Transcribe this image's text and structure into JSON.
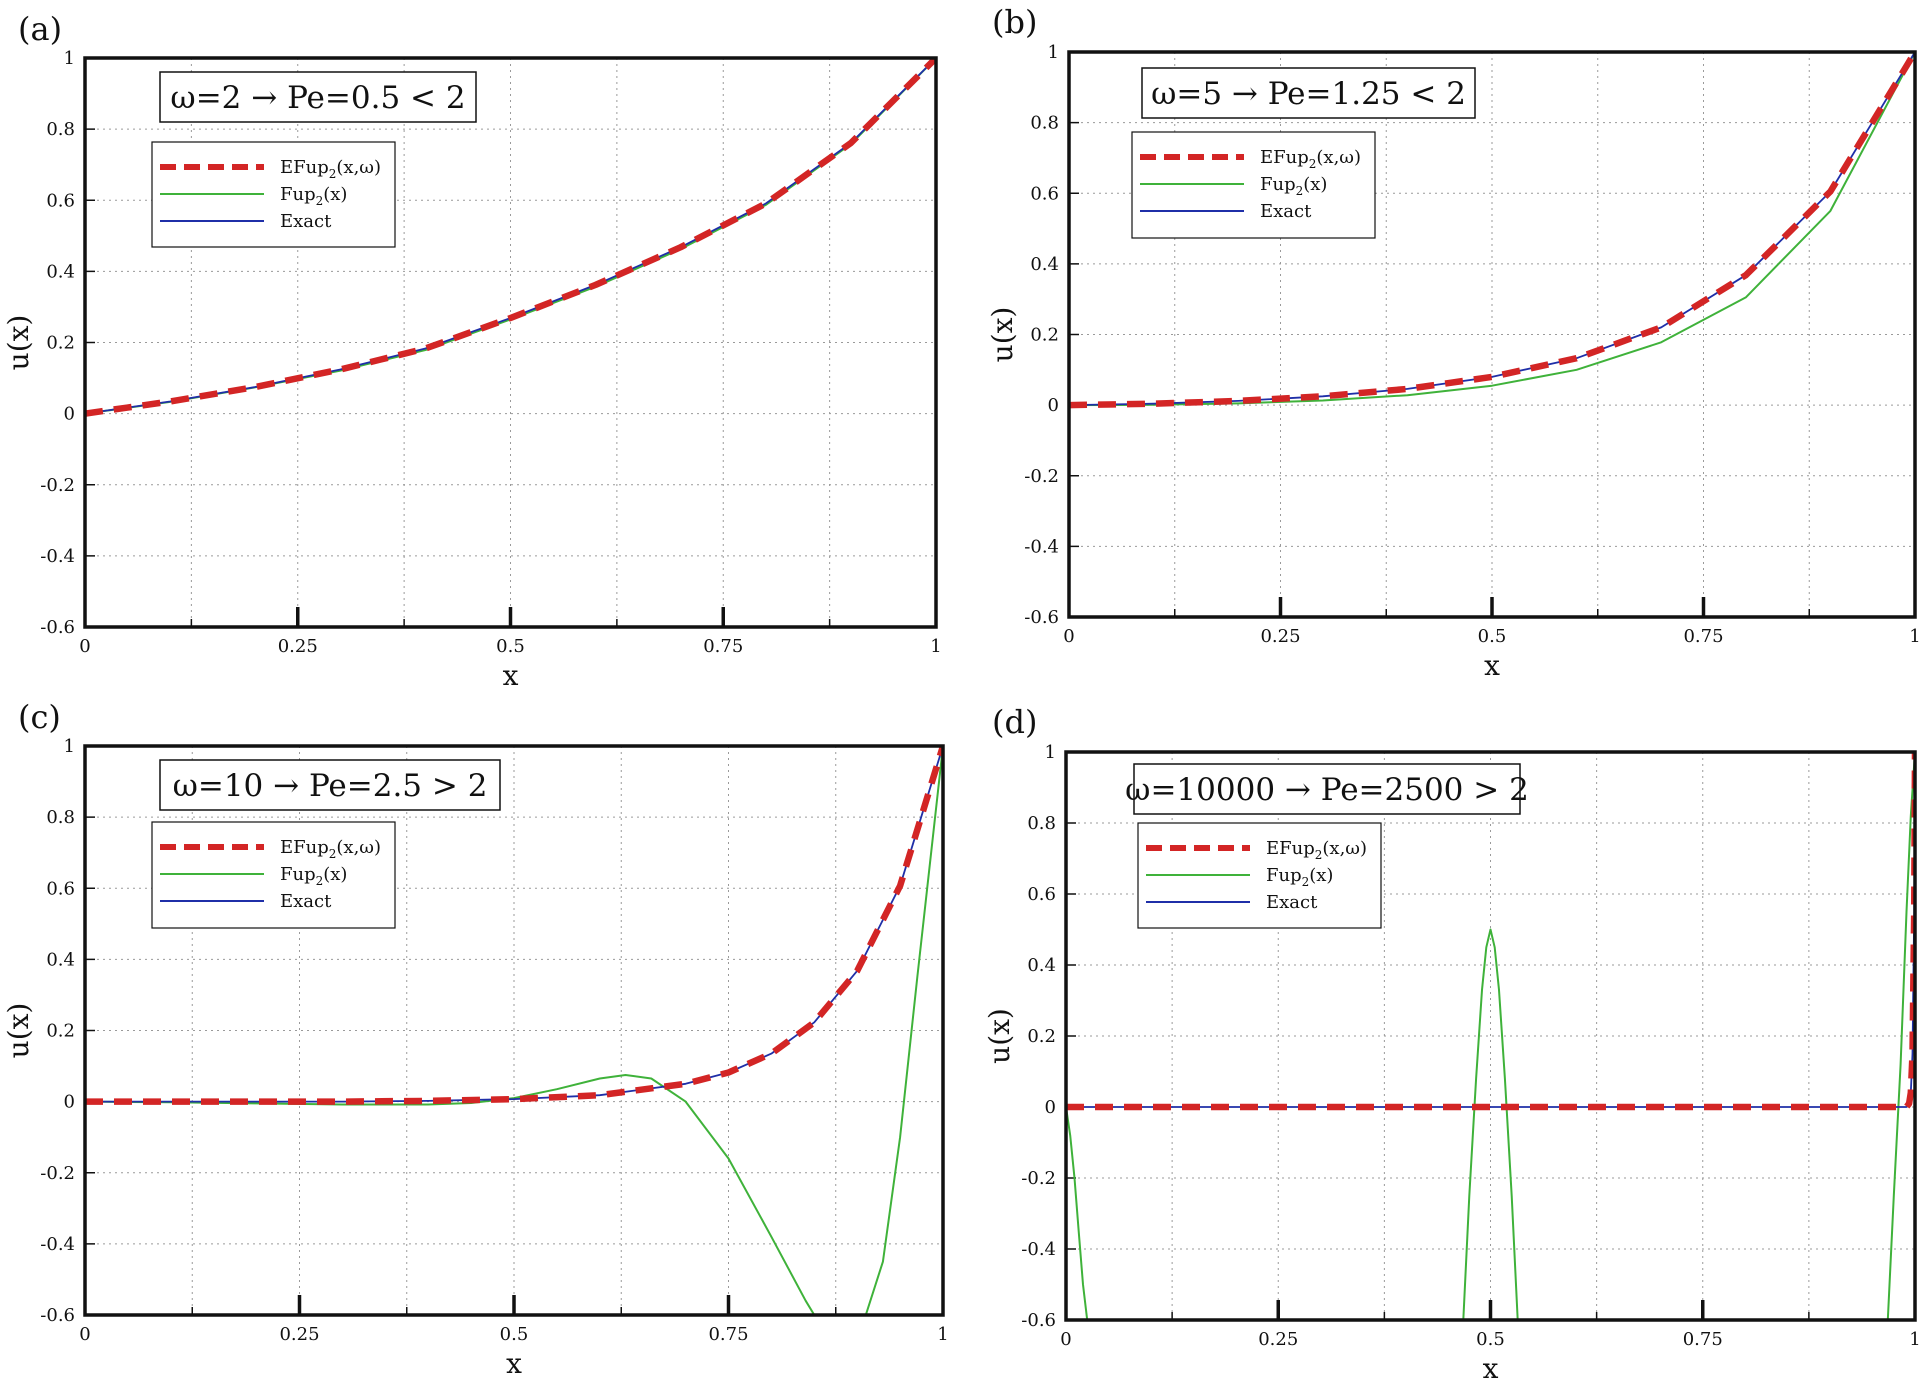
{
  "chart_data": [
    {
      "panel": "(a)",
      "type": "line",
      "omega": 2,
      "annotation": "ω=2 → Pe=0.5 < 2",
      "xlabel": "x",
      "ylabel": "u(x)",
      "xlim": [
        0,
        1
      ],
      "ylim": [
        -0.6,
        1
      ],
      "xticks": [
        "0",
        "0.25",
        "0.5",
        "0.75",
        "1"
      ],
      "yticks": [
        "1",
        "0.8",
        "0.6",
        "0.4",
        "0.2",
        "0",
        "-0.2",
        "-0.4",
        "-0.6"
      ],
      "grid": true,
      "legend": [
        {
          "base": "EFup",
          "sub": "2",
          "rest": "(x,ω)",
          "style": "dashed-red"
        },
        {
          "base": "Fup",
          "sub": "2",
          "rest": "(x)",
          "style": "solid-green"
        },
        {
          "base": "Exact",
          "sub": "",
          "rest": "",
          "style": "solid-blue"
        }
      ],
      "series": [
        {
          "name": "Exact",
          "x": [
            0,
            0.1,
            0.2,
            0.3,
            0.4,
            0.5,
            0.6,
            0.7,
            0.8,
            0.9,
            1
          ],
          "y": [
            0,
            0.034,
            0.075,
            0.124,
            0.183,
            0.269,
            0.362,
            0.468,
            0.591,
            0.761,
            1
          ]
        },
        {
          "name": "EFup2(x,ω)",
          "x": [
            0,
            0.1,
            0.2,
            0.3,
            0.4,
            0.5,
            0.6,
            0.7,
            0.8,
            0.9,
            1
          ],
          "y": [
            0,
            0.034,
            0.075,
            0.124,
            0.183,
            0.269,
            0.362,
            0.468,
            0.591,
            0.761,
            1
          ]
        },
        {
          "name": "Fup2(x)",
          "x": [
            0,
            0.1,
            0.2,
            0.3,
            0.4,
            0.5,
            0.6,
            0.7,
            0.8,
            0.9,
            1
          ],
          "y": [
            0,
            0.033,
            0.074,
            0.121,
            0.179,
            0.265,
            0.357,
            0.463,
            0.587,
            0.758,
            1
          ]
        }
      ]
    },
    {
      "panel": "(b)",
      "type": "line",
      "omega": 5,
      "annotation": "ω=5 → Pe=1.25 < 2",
      "xlabel": "x",
      "ylabel": "u(x)",
      "xlim": [
        0,
        1
      ],
      "ylim": [
        -0.6,
        1
      ],
      "xticks": [
        "0",
        "0.25",
        "0.5",
        "0.75",
        "1"
      ],
      "yticks": [
        "1",
        "0.8",
        "0.6",
        "0.4",
        "0.2",
        "0",
        "-0.2",
        "-0.4",
        "-0.6"
      ],
      "grid": true,
      "legend": [
        {
          "base": "EFup",
          "sub": "2",
          "rest": "(x,ω)",
          "style": "dashed-red"
        },
        {
          "base": "Fup",
          "sub": "2",
          "rest": "(x)",
          "style": "solid-green"
        },
        {
          "base": "Exact",
          "sub": "",
          "rest": "",
          "style": "solid-blue"
        }
      ],
      "series": [
        {
          "name": "Exact",
          "x": [
            0,
            0.1,
            0.2,
            0.3,
            0.4,
            0.5,
            0.6,
            0.7,
            0.8,
            0.9,
            1
          ],
          "y": [
            0,
            0.004,
            0.012,
            0.025,
            0.046,
            0.08,
            0.133,
            0.22,
            0.368,
            0.605,
            1
          ]
        },
        {
          "name": "EFup2(x,ω)",
          "x": [
            0,
            0.1,
            0.2,
            0.3,
            0.4,
            0.5,
            0.6,
            0.7,
            0.8,
            0.9,
            1
          ],
          "y": [
            0,
            0.004,
            0.012,
            0.025,
            0.046,
            0.08,
            0.133,
            0.22,
            0.368,
            0.605,
            1
          ]
        },
        {
          "name": "Fup2(x)",
          "x": [
            0,
            0.1,
            0.2,
            0.3,
            0.4,
            0.5,
            0.6,
            0.7,
            0.8,
            0.9,
            1
          ],
          "y": [
            0,
            0.001,
            0.005,
            0.013,
            0.028,
            0.055,
            0.1,
            0.178,
            0.305,
            0.55,
            1
          ]
        }
      ]
    },
    {
      "panel": "(c)",
      "type": "line",
      "omega": 10,
      "annotation": "ω=10 → Pe=2.5 > 2",
      "xlabel": "x",
      "ylabel": "u(x)",
      "xlim": [
        0,
        1
      ],
      "ylim": [
        -0.6,
        1
      ],
      "xticks": [
        "0",
        "0.25",
        "0.5",
        "0.75",
        "1"
      ],
      "yticks": [
        "1",
        "0.8",
        "0.6",
        "0.4",
        "0.2",
        "0",
        "-0.2",
        "-0.4",
        "-0.6"
      ],
      "grid": true,
      "legend": [
        {
          "base": "EFup",
          "sub": "2",
          "rest": "(x,ω)",
          "style": "dashed-red"
        },
        {
          "base": "Fup",
          "sub": "2",
          "rest": "(x)",
          "style": "solid-green"
        },
        {
          "base": "Exact",
          "sub": "",
          "rest": "",
          "style": "solid-blue"
        }
      ],
      "series": [
        {
          "name": "Exact",
          "x": [
            0,
            0.1,
            0.2,
            0.3,
            0.4,
            0.5,
            0.6,
            0.7,
            0.75,
            0.8,
            0.85,
            0.9,
            0.95,
            1
          ],
          "y": [
            0,
            0,
            0,
            0,
            0.002,
            0.007,
            0.018,
            0.05,
            0.082,
            0.135,
            0.223,
            0.368,
            0.607,
            1
          ]
        },
        {
          "name": "EFup2(x,ω)",
          "x": [
            0,
            0.1,
            0.2,
            0.3,
            0.4,
            0.5,
            0.6,
            0.7,
            0.75,
            0.8,
            0.85,
            0.9,
            0.95,
            1
          ],
          "y": [
            0,
            0,
            0,
            0,
            0.002,
            0.007,
            0.018,
            0.05,
            0.082,
            0.135,
            0.223,
            0.368,
            0.607,
            1
          ]
        },
        {
          "name": "Fup2(x)",
          "x": [
            0,
            0.1,
            0.2,
            0.3,
            0.4,
            0.45,
            0.5,
            0.55,
            0.6,
            0.63,
            0.66,
            0.7,
            0.75,
            0.8,
            0.84,
            0.85,
            0.91,
            0.93,
            0.95,
            0.97,
            1
          ],
          "y": [
            0,
            -0.002,
            -0.005,
            -0.008,
            -0.008,
            -0.004,
            0.01,
            0.035,
            0.065,
            0.075,
            0.065,
            0,
            -0.16,
            -0.38,
            -0.56,
            -0.6,
            -0.6,
            -0.45,
            -0.1,
            0.35,
            1
          ]
        }
      ]
    },
    {
      "panel": "(d)",
      "type": "line",
      "omega": 10000,
      "annotation": "ω=10000 → Pe=2500 > 2",
      "xlabel": "x",
      "ylabel": "u(x)",
      "xlim": [
        0,
        1
      ],
      "ylim": [
        -0.6,
        1
      ],
      "xticks": [
        "0",
        "0.25",
        "0.5",
        "0.75",
        "1"
      ],
      "yticks": [
        "1",
        "0.8",
        "0.6",
        "0.4",
        "0.2",
        "0",
        "-0.2",
        "-0.4",
        "-0.6"
      ],
      "grid": true,
      "legend": [
        {
          "base": "EFup",
          "sub": "2",
          "rest": "(x,ω)",
          "style": "dashed-red"
        },
        {
          "base": "Fup",
          "sub": "2",
          "rest": "(x)",
          "style": "solid-green"
        },
        {
          "base": "Exact",
          "sub": "",
          "rest": "",
          "style": "solid-blue"
        }
      ],
      "series": [
        {
          "name": "Exact",
          "x": [
            0,
            0.99,
            0.993,
            0.995,
            0.997,
            0.999,
            1
          ],
          "y": [
            0,
            0,
            0.01,
            0.04,
            0.15,
            0.55,
            1
          ]
        },
        {
          "name": "EFup2(x,ω)",
          "x": [
            0,
            0.99,
            0.993,
            0.995,
            0.997,
            0.999,
            1
          ],
          "y": [
            0,
            0,
            0.01,
            0.04,
            0.15,
            0.55,
            1
          ]
        },
        {
          "name": "Fup2(x)",
          "segments": [
            {
              "x": [
                0,
                0.005,
                0.01,
                0.015,
                0.02,
                0.025
              ],
              "y": [
                0,
                -0.08,
                -0.2,
                -0.35,
                -0.5,
                -0.6
              ]
            },
            {
              "x": [
                0.468,
                0.475,
                0.483,
                0.49,
                0.495,
                0.5,
                0.505,
                0.51,
                0.517,
                0.525,
                0.532
              ],
              "y": [
                -0.6,
                -0.25,
                0.08,
                0.33,
                0.45,
                0.5,
                0.45,
                0.33,
                0.08,
                -0.25,
                -0.6
              ]
            },
            {
              "x": [
                0.968,
                0.975,
                0.983,
                0.99,
                0.995,
                1
              ],
              "y": [
                -0.6,
                -0.25,
                0.12,
                0.55,
                0.82,
                1
              ]
            }
          ]
        }
      ]
    }
  ]
}
